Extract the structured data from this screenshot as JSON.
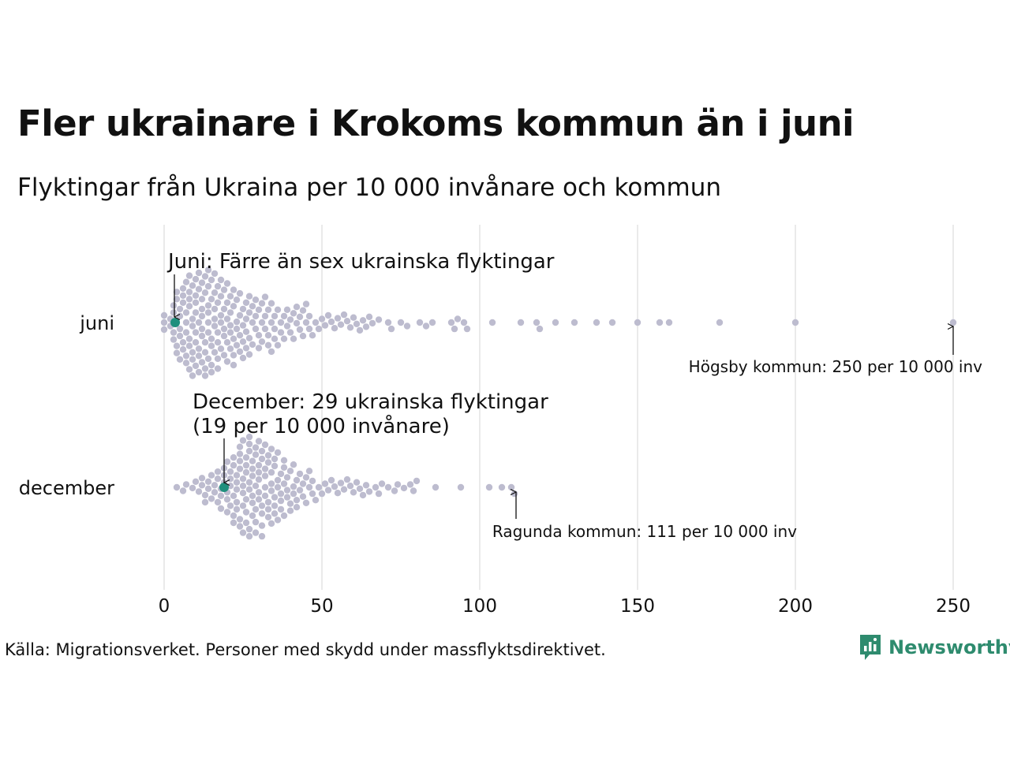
{
  "title": "Fler ukrainare i Krokoms kommun än i juni",
  "subtitle": "Flyktingar från Ukraina per 10 000 invånare och kommun",
  "source": "Källa: Migrationsverket. Personer med skydd under massflyktsdirektivet.",
  "brand": {
    "name": "Newsworthy",
    "icon": "newsworthy-logo-icon",
    "color": "#2e8b6e"
  },
  "chart_data": {
    "type": "scatter",
    "subtype": "beeswarm",
    "x_axis": {
      "ticks": [
        0,
        50,
        100,
        150,
        200,
        250
      ],
      "range": [
        0,
        250
      ],
      "grid": true
    },
    "colors": {
      "points": "#bdbccf",
      "highlight": "#1f8f7d"
    },
    "series": [
      {
        "name": "juni",
        "highlight": {
          "value": 3.5,
          "label": "Juni: Färre än sex ukrainska flyktingar"
        },
        "max_note": {
          "value": 250,
          "label": "Högsby kommun: 250 per 10 000 inv"
        },
        "values": [
          0,
          0,
          0,
          2,
          2,
          3,
          3,
          3,
          3,
          4,
          4,
          4,
          4,
          4,
          5,
          5,
          5,
          5,
          5,
          6,
          6,
          6,
          6,
          6,
          7,
          7,
          7,
          7,
          7,
          7,
          8,
          8,
          8,
          8,
          8,
          8,
          8,
          9,
          9,
          9,
          9,
          9,
          9,
          10,
          10,
          10,
          10,
          10,
          10,
          10,
          11,
          11,
          11,
          11,
          11,
          11,
          12,
          12,
          12,
          12,
          12,
          12,
          12,
          13,
          13,
          13,
          13,
          13,
          13,
          14,
          14,
          14,
          14,
          14,
          14,
          14,
          15,
          15,
          15,
          15,
          15,
          15,
          16,
          16,
          16,
          16,
          16,
          16,
          17,
          17,
          17,
          17,
          17,
          17,
          18,
          18,
          18,
          18,
          18,
          19,
          19,
          19,
          19,
          19,
          20,
          20,
          20,
          20,
          20,
          21,
          21,
          21,
          21,
          21,
          22,
          22,
          22,
          22,
          22,
          23,
          23,
          23,
          23,
          24,
          24,
          24,
          24,
          25,
          25,
          25,
          25,
          26,
          26,
          26,
          26,
          27,
          27,
          27,
          27,
          28,
          28,
          28,
          29,
          29,
          29,
          30,
          30,
          30,
          31,
          31,
          31,
          32,
          32,
          32,
          33,
          33,
          33,
          34,
          34,
          34,
          35,
          35,
          35,
          36,
          36,
          37,
          37,
          38,
          38,
          39,
          39,
          40,
          40,
          41,
          41,
          42,
          42,
          43,
          43,
          44,
          44,
          45,
          45,
          46,
          46,
          47,
          48,
          49,
          50,
          51,
          52,
          53,
          54,
          55,
          56,
          57,
          58,
          59,
          60,
          61,
          62,
          63,
          64,
          65,
          66,
          68,
          71,
          72,
          75,
          77,
          81,
          83,
          85,
          91,
          92,
          93,
          95,
          96,
          104,
          113,
          118,
          119,
          124,
          130,
          137,
          142,
          150,
          157,
          160,
          176,
          200,
          250
        ]
      },
      {
        "name": "december",
        "highlight": {
          "value": 19,
          "label_line1": "December: 29 ukrainska flyktingar",
          "label_line2": "(19 per 10 000 invånare)"
        },
        "max_note": {
          "value": 111,
          "label": "Ragunda kommun: 111 per 10 000 inv"
        },
        "values": [
          4,
          6,
          7,
          9,
          10,
          11,
          12,
          12,
          13,
          13,
          14,
          14,
          15,
          15,
          16,
          16,
          17,
          17,
          17,
          18,
          18,
          18,
          19,
          19,
          19,
          20,
          20,
          20,
          20,
          21,
          21,
          21,
          21,
          22,
          22,
          22,
          22,
          22,
          23,
          23,
          23,
          23,
          23,
          24,
          24,
          24,
          24,
          24,
          24,
          25,
          25,
          25,
          25,
          25,
          25,
          26,
          26,
          26,
          26,
          26,
          26,
          27,
          27,
          27,
          27,
          27,
          27,
          27,
          28,
          28,
          28,
          28,
          28,
          28,
          29,
          29,
          29,
          29,
          29,
          29,
          30,
          30,
          30,
          30,
          30,
          30,
          31,
          31,
          31,
          31,
          31,
          31,
          32,
          32,
          32,
          32,
          32,
          33,
          33,
          33,
          33,
          33,
          34,
          34,
          34,
          34,
          34,
          35,
          35,
          35,
          35,
          35,
          36,
          36,
          36,
          36,
          37,
          37,
          37,
          37,
          38,
          38,
          38,
          38,
          39,
          39,
          39,
          40,
          40,
          40,
          41,
          41,
          41,
          42,
          42,
          42,
          43,
          43,
          44,
          44,
          45,
          45,
          46,
          46,
          47,
          47,
          48,
          49,
          50,
          51,
          52,
          53,
          54,
          55,
          56,
          57,
          58,
          59,
          60,
          61,
          62,
          63,
          64,
          65,
          67,
          68,
          69,
          71,
          73,
          74,
          76,
          78,
          79,
          80,
          86,
          94,
          103,
          107,
          110,
          111
        ]
      }
    ]
  }
}
